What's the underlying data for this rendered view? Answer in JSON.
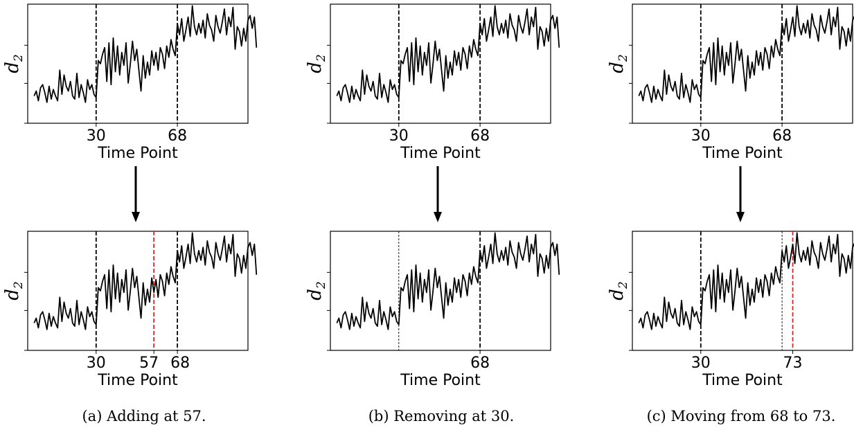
{
  "chart_data": [
    {
      "type": "line",
      "panel": "a-before",
      "ylabel": "d",
      "ylabel_sub": "2",
      "xlabel": "Time Point",
      "xlim": [
        -2,
        101
      ],
      "ylim": [
        -1.2,
        6.2
      ],
      "x_ticks": [
        30,
        68
      ],
      "changepoints": [
        {
          "x": 30,
          "color": "#000000",
          "style": "dashed"
        },
        {
          "x": 68,
          "color": "#000000",
          "style": "dashed"
        }
      ]
    },
    {
      "type": "line",
      "panel": "a-after",
      "ylabel": "d",
      "ylabel_sub": "2",
      "xlabel": "Time Point",
      "xlim": [
        -2,
        101
      ],
      "ylim": [
        -1.2,
        6.2
      ],
      "x_ticks": [
        30,
        57,
        68
      ],
      "changepoints": [
        {
          "x": 30,
          "color": "#000000",
          "style": "dashed"
        },
        {
          "x": 57,
          "color": "#d62728",
          "style": "dashed"
        },
        {
          "x": 68,
          "color": "#000000",
          "style": "dashed"
        }
      ]
    },
    {
      "type": "line",
      "panel": "b-before",
      "ylabel": "d",
      "ylabel_sub": "2",
      "xlabel": "Time Point",
      "xlim": [
        -2,
        101
      ],
      "ylim": [
        -1.2,
        6.2
      ],
      "x_ticks": [
        30,
        68
      ],
      "changepoints": [
        {
          "x": 30,
          "color": "#000000",
          "style": "dashed"
        },
        {
          "x": 68,
          "color": "#000000",
          "style": "dashed"
        }
      ]
    },
    {
      "type": "line",
      "panel": "b-after",
      "ylabel": "d",
      "ylabel_sub": "2",
      "xlabel": "Time Point",
      "xlim": [
        -2,
        101
      ],
      "ylim": [
        -1.2,
        6.2
      ],
      "x_ticks": [
        68
      ],
      "changepoints": [
        {
          "x": 30,
          "color": "#000000",
          "style": "thin-dashed"
        },
        {
          "x": 68,
          "color": "#000000",
          "style": "dashed"
        }
      ]
    },
    {
      "type": "line",
      "panel": "c-before",
      "ylabel": "d",
      "ylabel_sub": "2",
      "xlabel": "Time Point",
      "xlim": [
        -2,
        101
      ],
      "ylim": [
        -1.2,
        6.2
      ],
      "x_ticks": [
        30,
        68
      ],
      "changepoints": [
        {
          "x": 30,
          "color": "#000000",
          "style": "dashed"
        },
        {
          "x": 68,
          "color": "#000000",
          "style": "dashed"
        }
      ]
    },
    {
      "type": "line",
      "panel": "c-after",
      "ylabel": "d",
      "ylabel_sub": "2",
      "xlabel": "Time Point",
      "xlim": [
        -2,
        101
      ],
      "ylim": [
        -1.2,
        6.2
      ],
      "x_ticks": [
        30,
        73
      ],
      "changepoints": [
        {
          "x": 30,
          "color": "#000000",
          "style": "dashed"
        },
        {
          "x": 68,
          "color": "#000000",
          "style": "thin-dashed"
        },
        {
          "x": 73,
          "color": "#d62728",
          "style": "dashed"
        }
      ]
    }
  ],
  "series": {
    "x_start": 1,
    "y": [
      0.5,
      0.8,
      0.2,
      1.0,
      1.2,
      0.7,
      0.1,
      1.1,
      0.3,
      0.9,
      0.5,
      0.2,
      2.1,
      0.6,
      1.8,
      1.1,
      0.8,
      1.4,
      0.5,
      0.3,
      1.9,
      0.4,
      1.2,
      0.7,
      0.1,
      1.5,
      0.9,
      1.2,
      0.6,
      0.4,
      2.7,
      2.5,
      3.1,
      3.5,
      1.4,
      3.8,
      1.2,
      4.1,
      2.0,
      3.6,
      1.8,
      3.2,
      2.4,
      3.8,
      1.3,
      2.5,
      3.9,
      2.7,
      3.4,
      2.1,
      0.8,
      3.0,
      1.6,
      2.6,
      1.8,
      3.3,
      2.4,
      3.2,
      2.1,
      3.5,
      3.1,
      2.2,
      3.6,
      2.9,
      4.0,
      3.4,
      3.0,
      5.0,
      4.3,
      5.3,
      3.9,
      4.6,
      5.4,
      4.2,
      6.1,
      4.8,
      4.3,
      5.0,
      4.4,
      5.2,
      4.1,
      5.6,
      4.9,
      4.6,
      3.9,
      5.5,
      4.8,
      4.4,
      5.1,
      5.9,
      4.3,
      5.4,
      4.8,
      6.0,
      3.4,
      4.8,
      4.5,
      3.6,
      4.7,
      3.9,
      5.2,
      5.5,
      4.7,
      5.4,
      3.5
    ]
  },
  "arrows": [
    "down",
    "down",
    "down"
  ],
  "captions": [
    "(a) Adding at 57.",
    "(b) Removing at 30.",
    "(c) Moving from 68 to 73."
  ]
}
